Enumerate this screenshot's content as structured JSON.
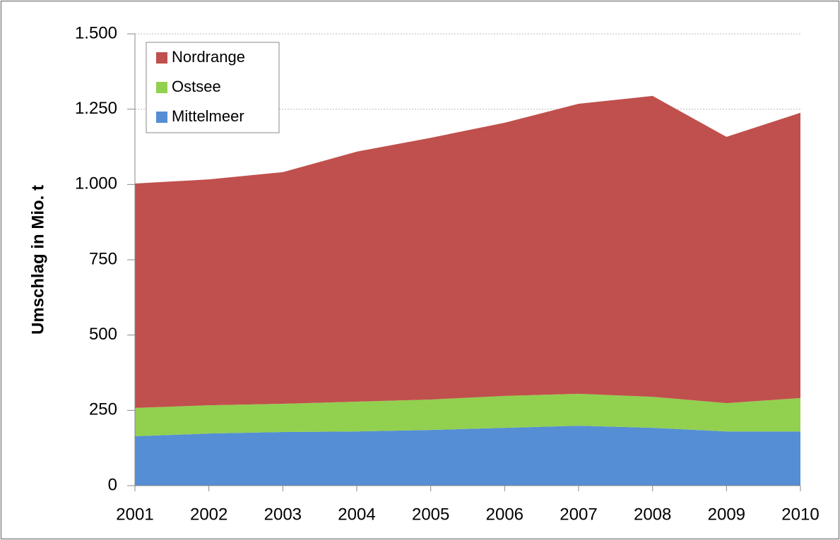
{
  "chart_data": {
    "type": "stacked_area",
    "y_label": "Umschlag in Mio. t",
    "categories": [
      "2001",
      "2002",
      "2003",
      "2004",
      "2005",
      "2006",
      "2007",
      "2008",
      "2009",
      "2010"
    ],
    "series": [
      {
        "name": "Mittelmeer",
        "color": "#558ed5",
        "values": [
          164,
          173,
          178,
          180,
          185,
          192,
          199,
          192,
          180,
          180
        ]
      },
      {
        "name": "Ostsee",
        "color": "#92d050",
        "values": [
          94,
          94,
          94,
          99,
          101,
          106,
          106,
          103,
          94,
          111
        ]
      },
      {
        "name": "Nordrange",
        "color": "#c0504d",
        "values": [
          745,
          750,
          769,
          830,
          869,
          907,
          963,
          999,
          884,
          947
        ]
      }
    ],
    "ylim": [
      0,
      1500
    ],
    "yticks": [
      0,
      250,
      500,
      750,
      {
        "value": 1000,
        "label": "1.000"
      },
      {
        "value": 1250,
        "label": "1.250"
      },
      {
        "value": 1500,
        "label": "1.500"
      }
    ],
    "grid": true,
    "legend": "upper left"
  }
}
